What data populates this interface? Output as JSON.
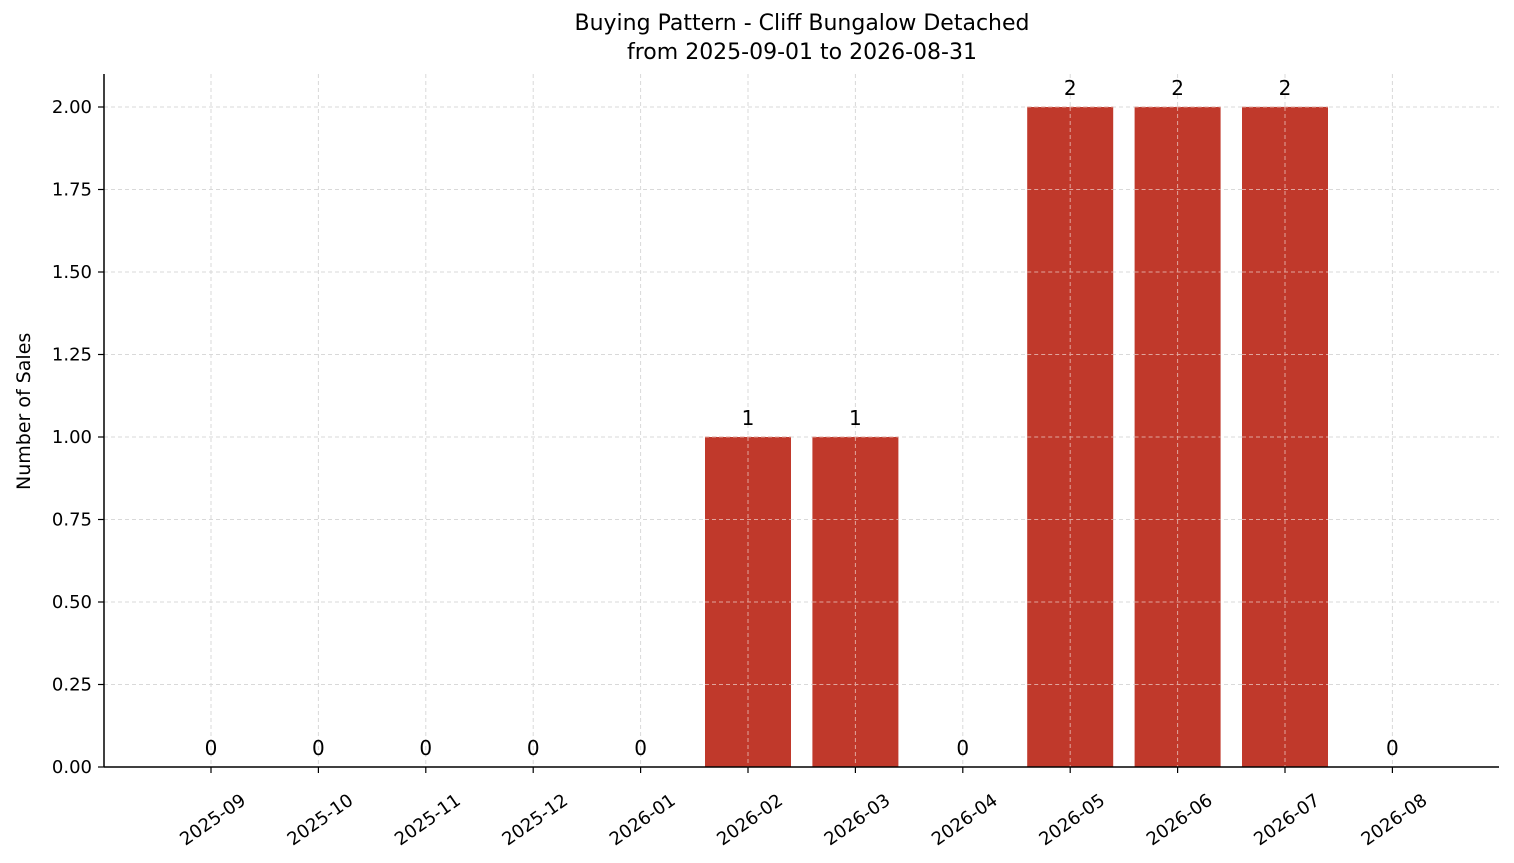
{
  "chart_data": {
    "type": "bar",
    "title": "Buying Pattern - Cliff Bungalow Detached",
    "subtitle": "from 2025-09-01 to 2026-08-31",
    "xlabel": "",
    "ylabel": "Number of Sales",
    "categories": [
      "2025-09",
      "2025-10",
      "2025-11",
      "2025-12",
      "2026-01",
      "2026-02",
      "2026-03",
      "2026-04",
      "2026-05",
      "2026-06",
      "2026-07",
      "2026-08"
    ],
    "values": [
      0,
      0,
      0,
      0,
      0,
      1,
      1,
      0,
      2,
      2,
      2,
      0
    ],
    "data_labels": [
      "0",
      "0",
      "0",
      "0",
      "0",
      "1",
      "1",
      "0",
      "2",
      "2",
      "2",
      "0"
    ],
    "ylim": [
      0,
      2.1
    ],
    "yticks": [
      "0.00",
      "0.25",
      "0.50",
      "0.75",
      "1.00",
      "1.25",
      "1.50",
      "1.75",
      "2.00"
    ],
    "ytick_values": [
      0,
      0.25,
      0.5,
      0.75,
      1.0,
      1.25,
      1.5,
      1.75,
      2.0
    ],
    "grid": true,
    "bar_color": "#c0392b",
    "grid_color": "#d9d9d9",
    "axis_color": "#000000"
  }
}
